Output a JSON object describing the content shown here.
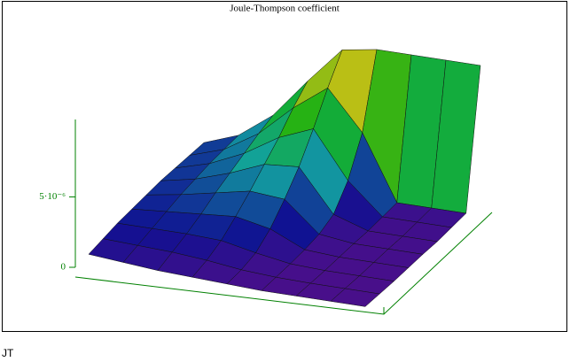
{
  "chart_data": {
    "type": "surface",
    "title": "Joule-Thompson coefficient",
    "caption": "JT",
    "zlim": [
      0,
      1.05e-05
    ],
    "zticks": [
      0,
      {
        "value": 5e-06,
        "label": "5·10⁻⁶"
      }
    ],
    "axis_color": "#008000",
    "z": [
      [
        8e-07,
        6e-07,
        4e-07,
        3e-07,
        2e-07,
        1e-07,
        1e-07,
        1e-07,
        1e-07
      ],
      [
        1e-06,
        9e-07,
        8e-07,
        6e-07,
        3e-07,
        1.5e-07,
        1e-07,
        1e-07,
        1e-07
      ],
      [
        1.2e-06,
        1.2e-06,
        1.2e-06,
        1.1e-06,
        6e-07,
        2e-07,
        1e-07,
        1e-07,
        1e-07
      ],
      [
        1.3e-06,
        1.5e-06,
        1.7e-06,
        1.9e-06,
        1.4e-06,
        3e-07,
        1.5e-07,
        1.5e-07,
        1.5e-07
      ],
      [
        1.4e-06,
        1.8e-06,
        2.3e-06,
        2.8e-06,
        2.6e-06,
        5e-07,
        2e-07,
        2e-07,
        2e-07
      ],
      [
        1.5e-06,
        2e-06,
        2.8e-06,
        3.8e-06,
        4e-06,
        1e-06,
        2e-07,
        2e-07,
        2e-07
      ],
      [
        1.5e-06,
        2.2e-06,
        3.3e-06,
        4.8e-06,
        5.8e-06,
        2.5e-06,
        3e-07,
        3e-07,
        3e-07
      ],
      [
        1.5e-06,
        2.3e-06,
        3.8e-06,
        6e-06,
        7.8e-06,
        5e-06,
        4e-07,
        4e-07,
        4e-07
      ],
      [
        1.5e-06,
        2.4e-06,
        4.2e-06,
        7e-06,
        9.6e-06,
        1e-05,
        1e-05,
        1e-05,
        1e-05
      ]
    ]
  }
}
